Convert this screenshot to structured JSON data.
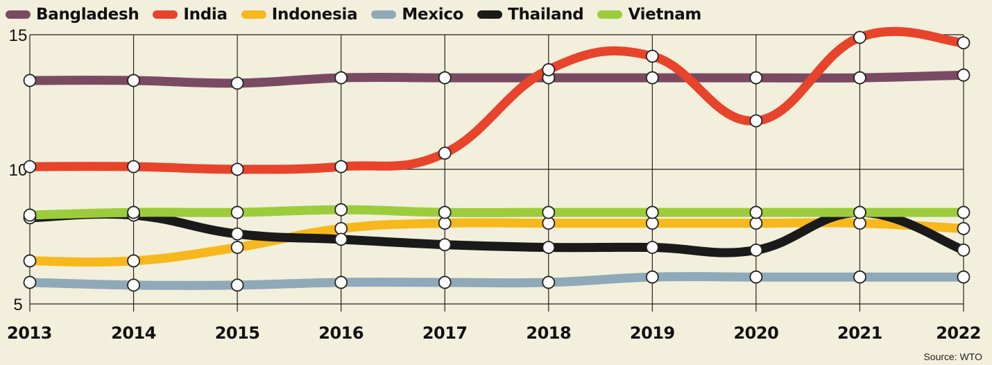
{
  "chart_data": {
    "type": "line",
    "x": [
      "2013",
      "2014",
      "2015",
      "2016",
      "2017",
      "2018",
      "2019",
      "2020",
      "2021",
      "2022"
    ],
    "ylim": [
      5,
      15
    ],
    "yticks": [
      "5",
      "10",
      "15"
    ],
    "grid": true,
    "legend_position": "top",
    "source": "Source: WTO",
    "series": [
      {
        "name": "Bangladesh",
        "color": "#7a4a63",
        "values": [
          13.3,
          13.3,
          13.2,
          13.4,
          13.4,
          13.4,
          13.4,
          13.4,
          13.4,
          13.5
        ]
      },
      {
        "name": "India",
        "color": "#e8432b",
        "values": [
          10.1,
          10.1,
          10.0,
          10.1,
          10.6,
          13.7,
          14.2,
          11.8,
          14.9,
          14.7
        ]
      },
      {
        "name": "Indonesia",
        "color": "#f6b81c",
        "values": [
          6.6,
          6.6,
          7.1,
          7.8,
          8.0,
          8.0,
          8.0,
          8.0,
          8.0,
          7.8
        ]
      },
      {
        "name": "Mexico",
        "color": "#8fa9b9",
        "values": [
          5.8,
          5.7,
          5.7,
          5.8,
          5.8,
          5.8,
          6.0,
          6.0,
          6.0,
          6.0
        ]
      },
      {
        "name": "Thailand",
        "color": "#1a1a1a",
        "values": [
          8.2,
          8.3,
          7.6,
          7.4,
          7.2,
          7.1,
          7.1,
          7.0,
          8.4,
          7.0
        ]
      },
      {
        "name": "Vietnam",
        "color": "#9ccc3c",
        "values": [
          8.3,
          8.4,
          8.4,
          8.5,
          8.4,
          8.4,
          8.4,
          8.4,
          8.4,
          8.4
        ]
      }
    ]
  }
}
